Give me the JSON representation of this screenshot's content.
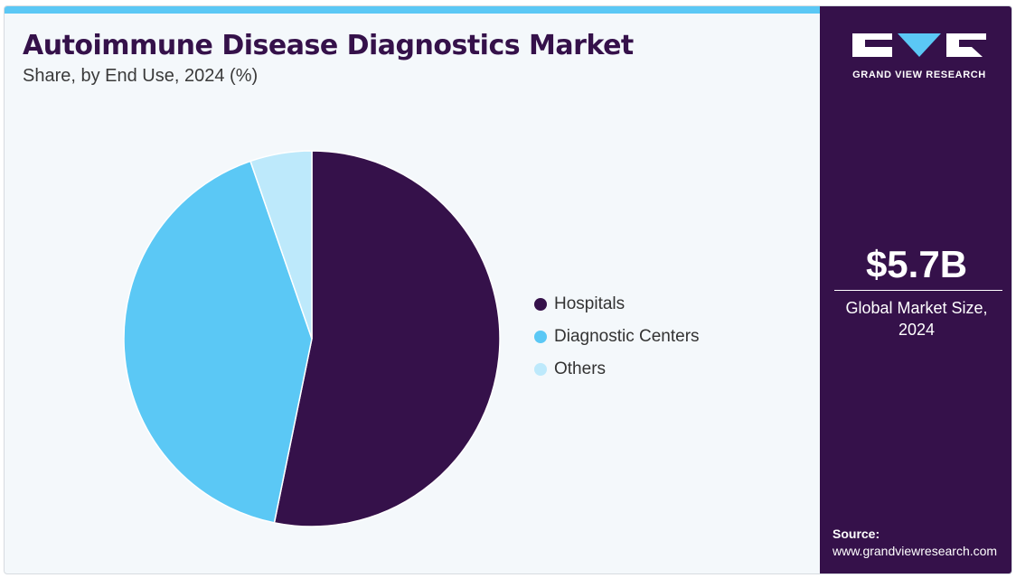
{
  "header": {
    "title": "Autoimmune Disease Diagnostics Market",
    "subtitle": "Share, by End Use, 2024 (%)"
  },
  "chart_data": {
    "type": "pie",
    "title": "Autoimmune Disease Diagnostics Market",
    "subtitle": "Share, by End Use, 2024 (%)",
    "categories": [
      "Hospitals",
      "Diagnostic Centers",
      "Others"
    ],
    "values": [
      53.2,
      41.5,
      5.3
    ],
    "colors": [
      "#35114a",
      "#5bc8f5",
      "#bde9fb"
    ],
    "legend_position": "right"
  },
  "legend": {
    "items": [
      {
        "label": "Hospitals",
        "color": "#35114a"
      },
      {
        "label": "Diagnostic Centers",
        "color": "#5bc8f5"
      },
      {
        "label": "Others",
        "color": "#bde9fb"
      }
    ]
  },
  "sidebar": {
    "brand": "GRAND VIEW RESEARCH",
    "market_size": "$5.7B",
    "market_caption": "Global Market Size, 2024",
    "source_label": "Source:",
    "source_url": "www.grandviewresearch.com"
  },
  "colors": {
    "primary": "#35114a",
    "accent": "#5bc8f5",
    "light_accent": "#bde9fb",
    "background": "#f4f8fb"
  }
}
